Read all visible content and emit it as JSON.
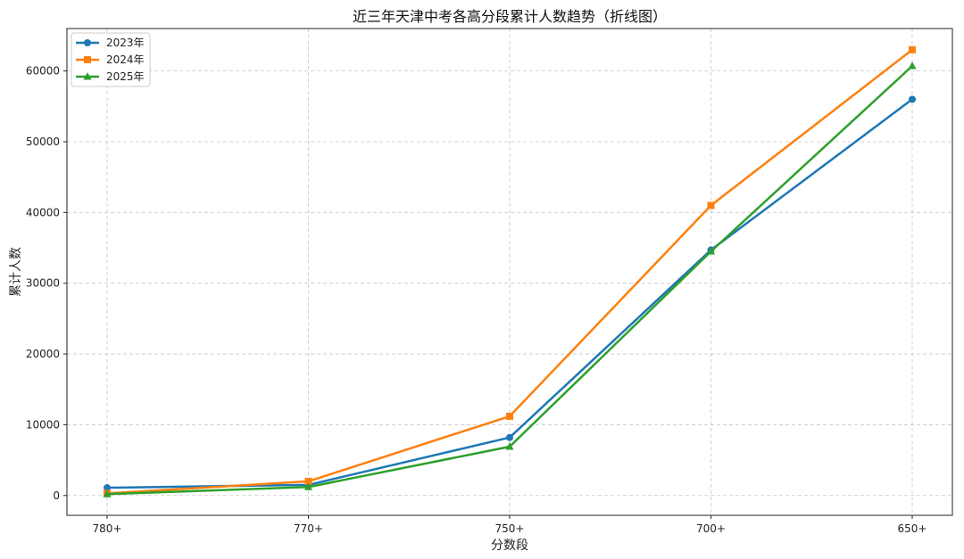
{
  "chart_data": {
    "type": "line",
    "title": "近三年天津中考各高分段累计人数趋势（折线图）",
    "xlabel": "分数段",
    "ylabel": "累计人数",
    "categories": [
      "780+",
      "770+",
      "750+",
      "700+",
      "650+"
    ],
    "ylim": [
      -2800,
      66000
    ],
    "yticks": [
      0,
      10000,
      20000,
      30000,
      40000,
      50000,
      60000
    ],
    "grid": true,
    "legend_position": "top-left",
    "series": [
      {
        "name": "2023年",
        "color": "#1f77b4",
        "marker": "circle",
        "values": [
          1100,
          1500,
          8200,
          34700,
          56000
        ]
      },
      {
        "name": "2024年",
        "color": "#ff7f0e",
        "marker": "square",
        "values": [
          300,
          2000,
          11200,
          41000,
          63000
        ]
      },
      {
        "name": "2025年",
        "color": "#2ca02c",
        "marker": "triangle",
        "values": [
          200,
          1200,
          6900,
          34500,
          60700
        ]
      }
    ]
  }
}
